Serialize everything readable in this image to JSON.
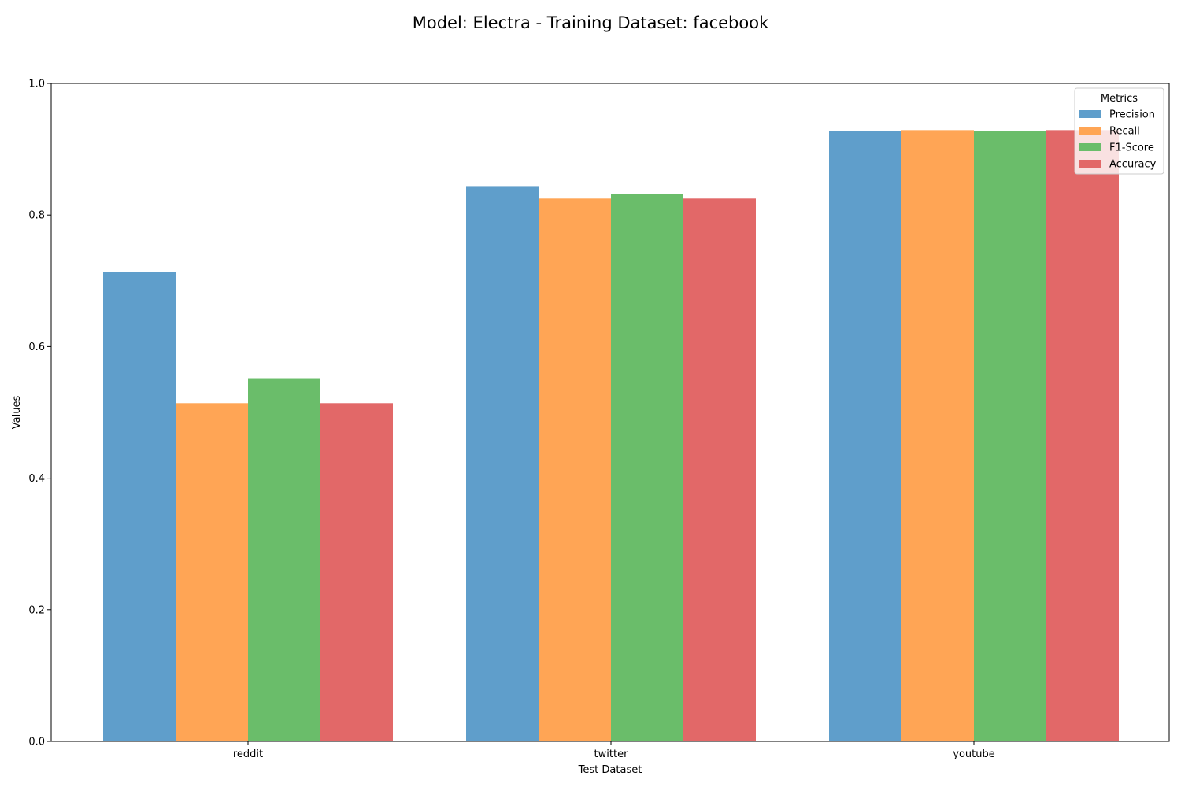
{
  "chart_data": {
    "type": "bar",
    "title": "Model: Electra - Training Dataset: facebook",
    "xlabel": "Test Dataset",
    "ylabel": "Values",
    "ylim": [
      0,
      1.0
    ],
    "yticks": [
      "0.0",
      "0.2",
      "0.4",
      "0.6",
      "0.8",
      "1.0"
    ],
    "categories": [
      "reddit",
      "twitter",
      "youtube"
    ],
    "grid": false,
    "legend": {
      "title": "Metrics",
      "placement": "top-right"
    },
    "series": [
      {
        "name": "Precision",
        "color": "#5f9ecb",
        "values": [
          0.714,
          0.844,
          0.928
        ]
      },
      {
        "name": "Recall",
        "color": "#ffa555",
        "values": [
          0.514,
          0.825,
          0.929
        ]
      },
      {
        "name": "F1-Score",
        "color": "#6abd6a",
        "values": [
          0.552,
          0.832,
          0.928
        ]
      },
      {
        "name": "Accuracy",
        "color": "#e26868",
        "values": [
          0.514,
          0.825,
          0.929
        ]
      }
    ]
  }
}
